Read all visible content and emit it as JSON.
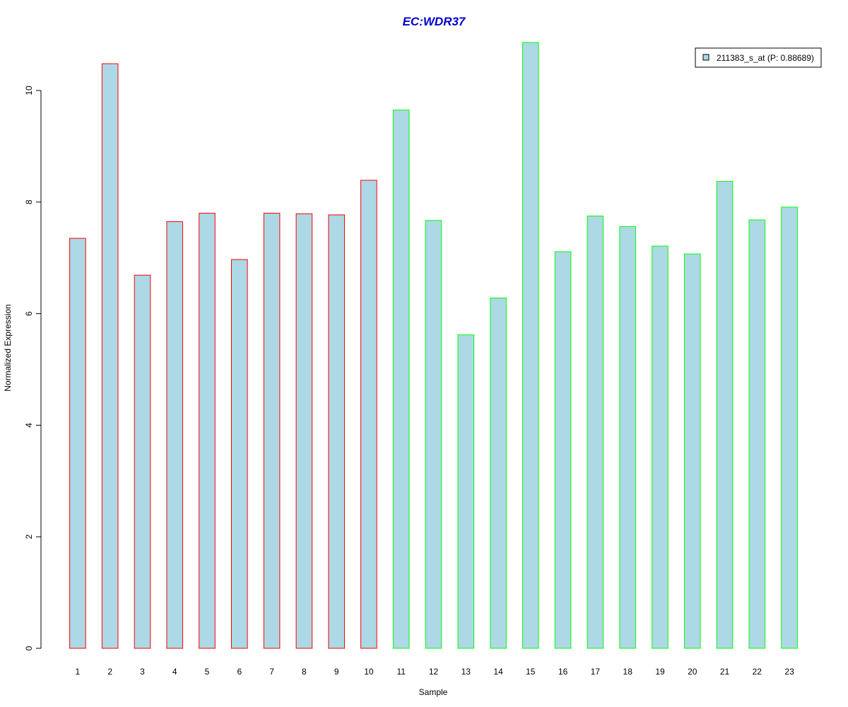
{
  "chart_data": {
    "type": "bar",
    "title": "EC:WDR37",
    "xlabel": "Sample",
    "ylabel": "Normalized Expression",
    "categories": [
      "1",
      "2",
      "3",
      "4",
      "5",
      "6",
      "7",
      "8",
      "9",
      "10",
      "11",
      "12",
      "13",
      "14",
      "15",
      "16",
      "17",
      "18",
      "19",
      "20",
      "21",
      "22",
      "23"
    ],
    "series": [
      {
        "name": "211383_s_at (P: 0.88689)",
        "values": [
          7.35,
          10.48,
          6.69,
          7.65,
          7.8,
          6.97,
          7.8,
          7.79,
          7.77,
          8.39,
          9.65,
          7.67,
          5.62,
          6.28,
          10.86,
          7.11,
          7.75,
          7.56,
          7.21,
          7.07,
          8.37,
          7.68,
          7.91
        ]
      }
    ],
    "groups": [
      0,
      0,
      0,
      0,
      0,
      0,
      0,
      0,
      0,
      0,
      1,
      1,
      1,
      1,
      1,
      1,
      1,
      1,
      1,
      1,
      1,
      1,
      1
    ],
    "yticks": [
      0,
      2,
      4,
      6,
      8,
      10
    ],
    "ylim": [
      0,
      11.2
    ],
    "legend_position": "top-right",
    "grid": false,
    "colors": {
      "bar_fill": "#add8e6",
      "group_borders": [
        "#ff0000",
        "#00ff00"
      ],
      "title": "#0000cc",
      "legend_border": "#000000"
    }
  }
}
